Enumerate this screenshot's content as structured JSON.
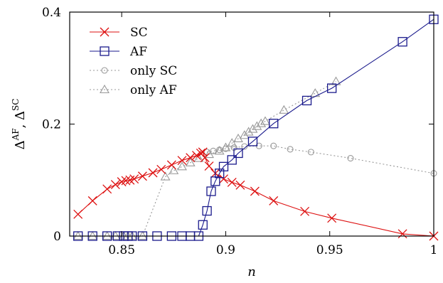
{
  "chart_data": {
    "type": "line",
    "title": "",
    "xlabel": "n",
    "ylabel": {
      "base1": "Δ",
      "sup1": "AF",
      "sep": ", ",
      "base2": "Δ",
      "sup2": "SC"
    },
    "xlim": [
      0.825,
      1.0
    ],
    "ylim": [
      0,
      0.4
    ],
    "x_ticks": [
      {
        "value": 0.85,
        "label": "0.85"
      },
      {
        "value": 0.9,
        "label": "0.9"
      },
      {
        "value": 0.95,
        "label": "0.95"
      },
      {
        "value": 1.0,
        "label": "1"
      }
    ],
    "y_ticks": [
      {
        "value": 0,
        "label": "0"
      },
      {
        "value": 0.2,
        "label": "0.2"
      },
      {
        "value": 0.4,
        "label": "0.4"
      }
    ],
    "grid": false,
    "legend_position": "top-left",
    "series": [
      {
        "name": "SC",
        "color": "#dd1111",
        "marker": "cross",
        "dashed": false,
        "points": [
          [
            0.829,
            0.039
          ],
          [
            0.836,
            0.063
          ],
          [
            0.843,
            0.084
          ],
          [
            0.847,
            0.092
          ],
          [
            0.85,
            0.097
          ],
          [
            0.852,
            0.099
          ],
          [
            0.854,
            0.1
          ],
          [
            0.856,
            0.102
          ],
          [
            0.86,
            0.107
          ],
          [
            0.865,
            0.113
          ],
          [
            0.869,
            0.119
          ],
          [
            0.874,
            0.127
          ],
          [
            0.879,
            0.135
          ],
          [
            0.883,
            0.14
          ],
          [
            0.886,
            0.144
          ],
          [
            0.888,
            0.148
          ],
          [
            0.889,
            0.15
          ],
          [
            0.89,
            0.14
          ],
          [
            0.892,
            0.125
          ],
          [
            0.895,
            0.112
          ],
          [
            0.899,
            0.102
          ],
          [
            0.903,
            0.096
          ],
          [
            0.907,
            0.091
          ],
          [
            0.914,
            0.08
          ],
          [
            0.923,
            0.063
          ],
          [
            0.938,
            0.044
          ],
          [
            0.951,
            0.032
          ],
          [
            0.985,
            0.004
          ],
          [
            1.0,
            0.0
          ]
        ]
      },
      {
        "name": "AF",
        "color": "#1a1a8c",
        "marker": "square",
        "dashed": false,
        "points": [
          [
            0.829,
            0.0
          ],
          [
            0.836,
            0.0
          ],
          [
            0.843,
            0.0
          ],
          [
            0.848,
            0.0
          ],
          [
            0.851,
            0.0
          ],
          [
            0.853,
            0.0
          ],
          [
            0.855,
            0.0
          ],
          [
            0.86,
            0.0
          ],
          [
            0.867,
            0.0
          ],
          [
            0.874,
            0.0
          ],
          [
            0.879,
            0.0
          ],
          [
            0.883,
            0.0
          ],
          [
            0.887,
            0.0
          ],
          [
            0.889,
            0.02
          ],
          [
            0.891,
            0.045
          ],
          [
            0.893,
            0.08
          ],
          [
            0.895,
            0.098
          ],
          [
            0.897,
            0.112
          ],
          [
            0.899,
            0.124
          ],
          [
            0.903,
            0.136
          ],
          [
            0.906,
            0.148
          ],
          [
            0.913,
            0.169
          ],
          [
            0.923,
            0.201
          ],
          [
            0.939,
            0.242
          ],
          [
            0.951,
            0.264
          ],
          [
            0.985,
            0.347
          ],
          [
            1.0,
            0.387
          ]
        ]
      },
      {
        "name": "only SC",
        "color": "#999999",
        "marker": "circle",
        "dashed": true,
        "points": [
          [
            0.891,
            0.15
          ],
          [
            0.894,
            0.152
          ],
          [
            0.897,
            0.154
          ],
          [
            0.9,
            0.156
          ],
          [
            0.904,
            0.158
          ],
          [
            0.909,
            0.16
          ],
          [
            0.916,
            0.161
          ],
          [
            0.923,
            0.161
          ],
          [
            0.931,
            0.155
          ],
          [
            0.941,
            0.15
          ],
          [
            0.96,
            0.139
          ],
          [
            1.0,
            0.112
          ]
        ]
      },
      {
        "name": "only AF",
        "color": "#999999",
        "marker": "triangle",
        "dashed": true,
        "points": [
          [
            0.829,
            0.0
          ],
          [
            0.836,
            0.0
          ],
          [
            0.843,
            0.0
          ],
          [
            0.847,
            0.0
          ],
          [
            0.851,
            0.0
          ],
          [
            0.853,
            0.0
          ],
          [
            0.855,
            0.0
          ],
          [
            0.86,
            0.0
          ],
          [
            0.871,
            0.106
          ],
          [
            0.875,
            0.117
          ],
          [
            0.879,
            0.124
          ],
          [
            0.883,
            0.131
          ],
          [
            0.887,
            0.139
          ],
          [
            0.892,
            0.146
          ],
          [
            0.897,
            0.152
          ],
          [
            0.9,
            0.158
          ],
          [
            0.903,
            0.166
          ],
          [
            0.906,
            0.174
          ],
          [
            0.909,
            0.18
          ],
          [
            0.911,
            0.186
          ],
          [
            0.913,
            0.191
          ],
          [
            0.915,
            0.196
          ],
          [
            0.917,
            0.201
          ],
          [
            0.919,
            0.205
          ],
          [
            0.928,
            0.225
          ],
          [
            0.943,
            0.255
          ],
          [
            0.953,
            0.276
          ]
        ]
      }
    ]
  }
}
